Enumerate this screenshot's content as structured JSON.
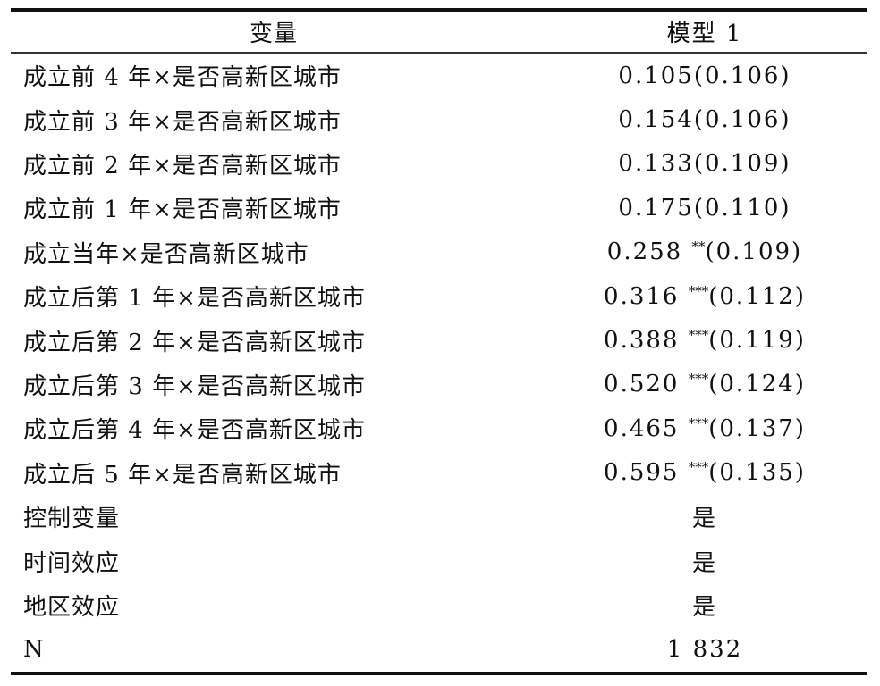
{
  "table": {
    "headers": [
      "变量",
      "模型 1"
    ],
    "rows": [
      {
        "label": "成立前 4 年×是否高新区城市",
        "coef": "0.105",
        "stars": "",
        "se": "(0.106)"
      },
      {
        "label": "成立前 3 年×是否高新区城市",
        "coef": "0.154",
        "stars": "",
        "se": "(0.106)"
      },
      {
        "label": "成立前 2 年×是否高新区城市",
        "coef": "0.133",
        "stars": "",
        "se": "(0.109)"
      },
      {
        "label": "成立前 1 年×是否高新区城市",
        "coef": "0.175",
        "stars": "",
        "se": "(0.110)"
      },
      {
        "label": "成立当年×是否高新区城市",
        "coef": "0.258 ",
        "stars": "**",
        "se": "(0.109)"
      },
      {
        "label": "成立后第 1 年×是否高新区城市",
        "coef": "0.316 ",
        "stars": "***",
        "se": "(0.112)"
      },
      {
        "label": "成立后第 2 年×是否高新区城市",
        "coef": "0.388 ",
        "stars": "***",
        "se": "(0.119)"
      },
      {
        "label": "成立后第 3 年×是否高新区城市",
        "coef": "0.520 ",
        "stars": "***",
        "se": "(0.124)"
      },
      {
        "label": "成立后第 4 年×是否高新区城市",
        "coef": "0.465 ",
        "stars": "***",
        "se": "(0.137)"
      },
      {
        "label": "成立后 5 年×是否高新区城市",
        "coef": "0.595 ",
        "stars": "***",
        "se": "(0.135)"
      },
      {
        "label": "控制变量",
        "coef": "是",
        "stars": "",
        "se": ""
      },
      {
        "label": "时间效应",
        "coef": "是",
        "stars": "",
        "se": ""
      },
      {
        "label": "地区效应",
        "coef": "是",
        "stars": "",
        "se": ""
      },
      {
        "label": "N",
        "coef": "1 832",
        "stars": "",
        "se": ""
      }
    ]
  }
}
